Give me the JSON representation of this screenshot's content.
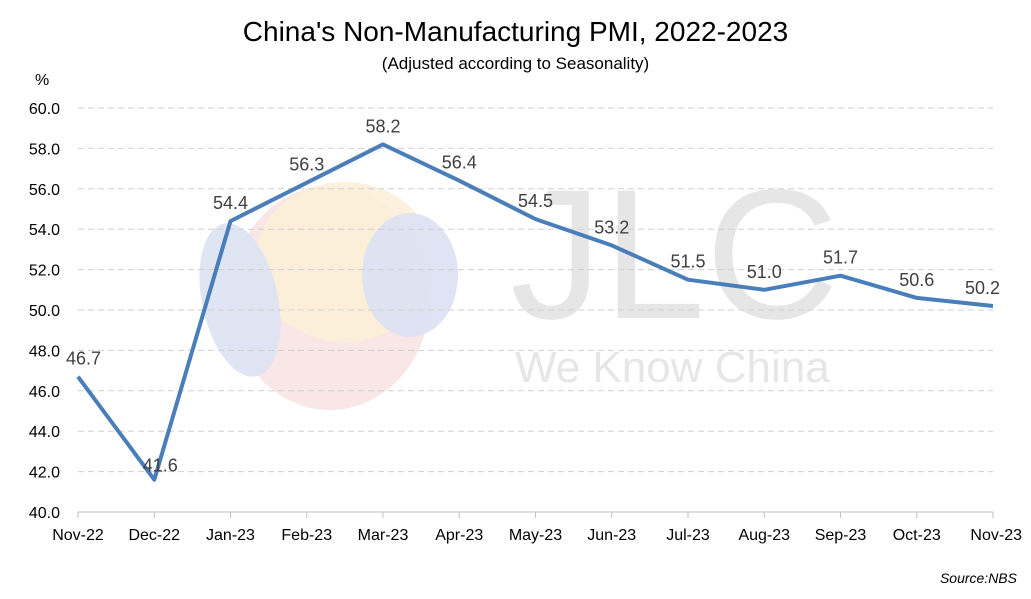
{
  "chart_data": {
    "type": "line",
    "title": "China's Non-Manufacturing PMI, 2022-2023",
    "subtitle": "(Adjusted according to Seasonality)",
    "ylabel": "%",
    "categories": [
      "Nov-22",
      "Dec-22",
      "Jan-23",
      "Feb-23",
      "Mar-23",
      "Apr-23",
      "May-23",
      "Jun-23",
      "Jul-23",
      "Aug-23",
      "Sep-23",
      "Oct-23",
      "Nov-23"
    ],
    "series": [
      {
        "values": [
          46.7,
          41.6,
          54.4,
          56.3,
          58.2,
          56.4,
          54.5,
          53.2,
          51.5,
          51.0,
          51.7,
          50.6,
          50.2
        ]
      }
    ],
    "data_labels": [
      "46.7",
      "41.6",
      "54.4",
      "56.3",
      "58.2",
      "56.4",
      "54.5",
      "53.2",
      "51.5",
      "51.0",
      "51.7",
      "50.6",
      "50.2"
    ],
    "ylim": [
      40,
      60
    ],
    "yticks": [
      "40.0",
      "42.0",
      "44.0",
      "46.0",
      "48.0",
      "50.0",
      "52.0",
      "54.0",
      "56.0",
      "58.0",
      "60.0"
    ],
    "grid": "horizontal dashed",
    "line_color": "#4a7ebb",
    "source": "Source:NBS"
  },
  "watermark": {
    "logo_text": "JLC",
    "tagline": "We Know China",
    "colors": [
      "#d9def0",
      "#fbefd6",
      "#f7dede"
    ]
  }
}
